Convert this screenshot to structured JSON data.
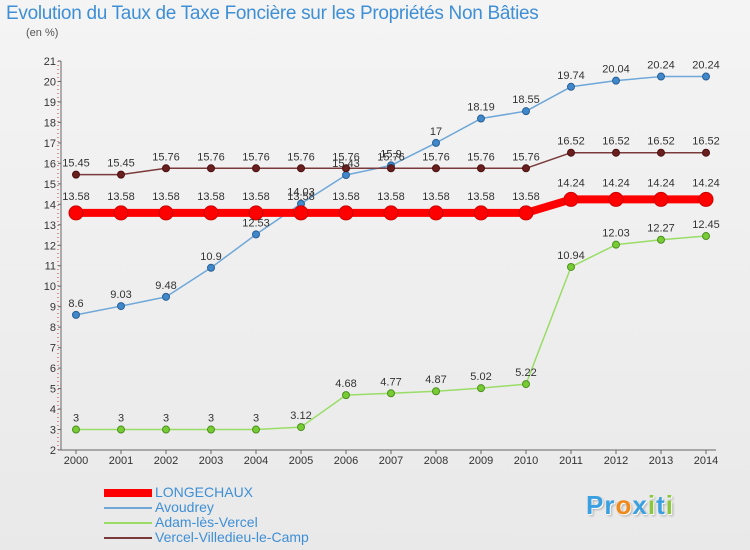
{
  "title": "Evolution du Taux de Taxe Foncière sur les Propriétés Non Bâties",
  "subtitle": "(en %)",
  "chart_data": {
    "type": "line",
    "title": "Evolution du Taux de Taxe Foncière sur les Propriétés Non Bâties",
    "ylabel": "(en %)",
    "xlabel": "",
    "x": [
      "2000",
      "2001",
      "2002",
      "2003",
      "2004",
      "2005",
      "2006",
      "2007",
      "2008",
      "2009",
      "2010",
      "2011",
      "2012",
      "2013",
      "2014"
    ],
    "ylim": [
      2,
      21
    ],
    "yticks": [
      "2",
      "3",
      "4",
      "5",
      "6",
      "7",
      "8",
      "9",
      "10",
      "11",
      "12",
      "13",
      "14",
      "15",
      "16",
      "17",
      "18",
      "19",
      "20",
      "21"
    ],
    "grid": false,
    "legend_position": "bottom-left",
    "series": [
      {
        "name": "LONGECHAUX",
        "color": "#ff0000",
        "values": [
          13.58,
          13.58,
          13.58,
          13.58,
          13.58,
          13.58,
          13.58,
          13.58,
          13.58,
          13.58,
          13.58,
          14.24,
          14.24,
          14.24,
          14.24
        ],
        "labels": [
          "13.58",
          "13.58",
          "13.58",
          "13.58",
          "13.58",
          "13.58",
          "13.58",
          "13.58",
          "13.58",
          "13.58",
          "13.58",
          "14.24",
          "14.24",
          "14.24",
          "14.24"
        ]
      },
      {
        "name": "Avoudrey",
        "color": "#6ea7d8",
        "values": [
          8.6,
          9.03,
          9.48,
          10.9,
          12.53,
          14.03,
          15.43,
          15.9,
          17,
          18.19,
          18.55,
          19.74,
          20.04,
          20.24,
          20.24
        ],
        "labels": [
          "8.6",
          "9.03",
          "9.48",
          "10.9",
          "12.53",
          "14.03",
          "15.43",
          "15.9",
          "17",
          "18.19",
          "18.55",
          "19.74",
          "20.04",
          "20.24",
          "20.24"
        ]
      },
      {
        "name": "Adam-lès-Vercel",
        "color": "#99dd66",
        "values": [
          3,
          3,
          3,
          3,
          3,
          3.12,
          4.68,
          4.77,
          4.87,
          5.02,
          5.22,
          10.94,
          12.03,
          12.27,
          12.45
        ],
        "labels": [
          "3",
          "3",
          "3",
          "3",
          "3",
          "3.12",
          "4.68",
          "4.77",
          "4.87",
          "5.02",
          "5.22",
          "10.94",
          "12.03",
          "12.27",
          "12.45"
        ]
      },
      {
        "name": "Vercel-Villedieu-le-Camp",
        "color": "#7a3a3a",
        "values": [
          15.45,
          15.45,
          15.76,
          15.76,
          15.76,
          15.76,
          15.76,
          15.76,
          15.76,
          15.76,
          15.76,
          16.52,
          16.52,
          16.52,
          16.52
        ],
        "labels": [
          "15.45",
          "15.45",
          "15.76",
          "15.76",
          "15.76",
          "15.76",
          "15.76",
          "15.76",
          "15.76",
          "15.76",
          "15.76",
          "16.52",
          "16.52",
          "16.52",
          "16.52"
        ]
      }
    ]
  },
  "logo": {
    "text": "Proxiti",
    "letters": [
      "P",
      "r",
      "o",
      "x",
      "i",
      "t",
      "i"
    ],
    "colors": [
      "#3aa0e0",
      "#3aa0e0",
      "#f08a1c",
      "#3aa0e0",
      "#8cc63f",
      "#3aa0e0",
      "#8cc63f"
    ]
  }
}
